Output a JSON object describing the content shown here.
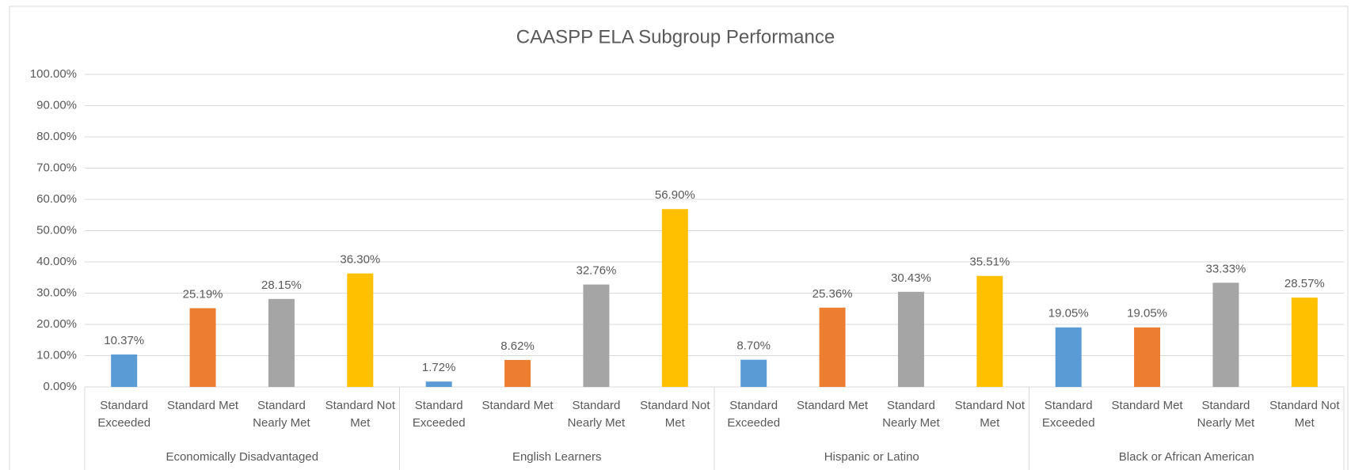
{
  "chart_data": {
    "type": "bar",
    "title": "CAASPP ELA Subgroup Performance",
    "categories": [
      "Economically Disadvantaged",
      "English Learners",
      "Hispanic or Latino",
      "Black or African American"
    ],
    "series": [
      {
        "name": "Standard Exceeded",
        "color": "#5b9bd5",
        "values": [
          10.37,
          1.72,
          8.7,
          19.05
        ],
        "value_labels": [
          "10.37%",
          "1.72%",
          "8.70%",
          "19.05%"
        ]
      },
      {
        "name": "Standard Met",
        "color": "#ed7d31",
        "values": [
          25.19,
          8.62,
          25.36,
          19.05
        ],
        "value_labels": [
          "25.19%",
          "8.62%",
          "25.36%",
          "19.05%"
        ]
      },
      {
        "name": "Standard Nearly Met",
        "color": "#a5a5a5",
        "values": [
          28.15,
          32.76,
          30.43,
          33.33
        ],
        "value_labels": [
          "28.15%",
          "32.76%",
          "30.43%",
          "33.33%"
        ]
      },
      {
        "name": "Standard Not Met",
        "color": "#ffc000",
        "values": [
          36.3,
          56.9,
          35.51,
          28.57
        ],
        "value_labels": [
          "36.30%",
          "56.90%",
          "35.51%",
          "28.57%"
        ]
      }
    ],
    "ylim": [
      0,
      100
    ],
    "yticks": [
      {
        "value": 0,
        "label": "0.00%"
      },
      {
        "value": 10,
        "label": "10.00%"
      },
      {
        "value": 20,
        "label": "20.00%"
      },
      {
        "value": 30,
        "label": "30.00%"
      },
      {
        "value": 40,
        "label": "40.00%"
      },
      {
        "value": 50,
        "label": "50.00%"
      },
      {
        "value": 60,
        "label": "60.00%"
      },
      {
        "value": 70,
        "label": "70.00%"
      },
      {
        "value": 80,
        "label": "80.00%"
      },
      {
        "value": 90,
        "label": "90.00%"
      },
      {
        "value": 100,
        "label": "100.00%"
      }
    ],
    "grid": true
  }
}
